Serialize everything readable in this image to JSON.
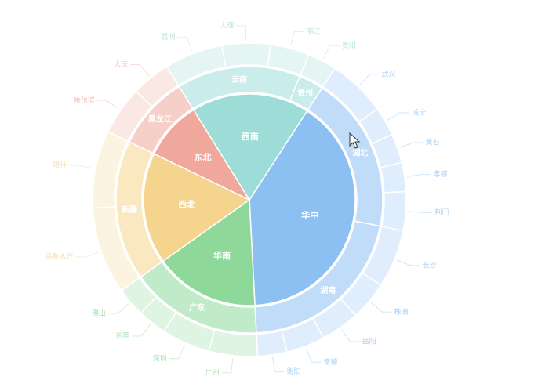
{
  "chart_data": {
    "type": "sunburst",
    "data": [
      {
        "name": "华中",
        "color": "#8cc0f3",
        "value": 40,
        "children": [
          {
            "name": "湖北",
            "value": 19,
            "children": [
              {
                "name": "武汉",
                "value": 6
              },
              {
                "name": "咸宁",
                "value": 3
              },
              {
                "name": "黄石",
                "value": 3
              },
              {
                "name": "孝感",
                "value": 3
              },
              {
                "name": "荆门",
                "value": 4
              }
            ]
          },
          {
            "name": "湖南",
            "value": 21,
            "children": [
              {
                "name": "长沙",
                "value": 6
              },
              {
                "name": "株洲",
                "value": 4
              },
              {
                "name": "岳阳",
                "value": 4
              },
              {
                "name": "常德",
                "value": 4
              },
              {
                "name": "衡阳",
                "value": 3
              }
            ]
          }
        ]
      },
      {
        "name": "华南",
        "color": "#8ed89a",
        "value": 16,
        "children": [
          {
            "name": "广东",
            "value": 16,
            "children": [
              {
                "name": "广州",
                "value": 5
              },
              {
                "name": "深圳",
                "value": 5
              },
              {
                "name": "东莞",
                "value": 3
              },
              {
                "name": "佛山",
                "value": 3
              }
            ]
          }
        ]
      },
      {
        "name": "西北",
        "color": "#f5d58e",
        "value": 17,
        "children": [
          {
            "name": "新疆",
            "value": 17,
            "children": [
              {
                "name": "乌鲁木齐",
                "value": 9
              },
              {
                "name": "喀什",
                "value": 8
              }
            ]
          }
        ]
      },
      {
        "name": "东北",
        "color": "#f1a89c",
        "value": 9,
        "children": [
          {
            "name": "黑龙江",
            "value": 9,
            "children": [
              {
                "name": "哈尔滨",
                "value": 5
              },
              {
                "name": "大庆",
                "value": 4
              }
            ]
          }
        ]
      },
      {
        "name": "西南",
        "color": "#9edcd8",
        "value": 18,
        "children": [
          {
            "name": "云南",
            "value": 15,
            "children": [
              {
                "name": "昆明",
                "value": 6
              },
              {
                "name": "大理",
                "value": 5
              },
              {
                "name": "丽江",
                "value": 4
              }
            ]
          },
          {
            "name": "贵州",
            "value": 3,
            "children": [
              {
                "name": "贵阳",
                "value": 3
              }
            ]
          }
        ]
      }
    ]
  }
}
